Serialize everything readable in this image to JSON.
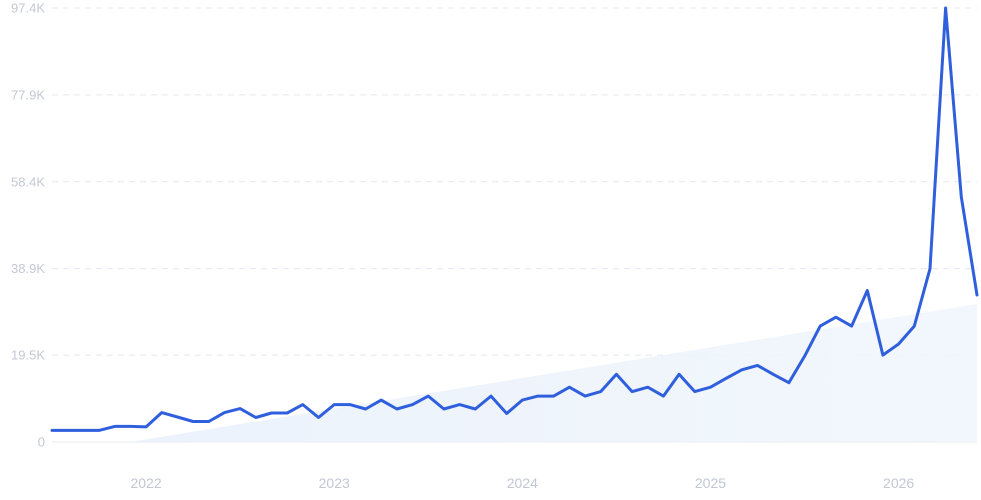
{
  "chart_data": {
    "type": "line",
    "title": "",
    "xlabel": "",
    "ylabel": "",
    "y_ticks": [
      "0",
      "19.5K",
      "38.9K",
      "58.4K",
      "77.9K",
      "97.4K"
    ],
    "y_tick_values": [
      0,
      19500,
      38900,
      58400,
      77900,
      97400
    ],
    "ylim": [
      0,
      97400
    ],
    "x_ticks": [
      "2022",
      "2023",
      "2024",
      "2025",
      "2026"
    ],
    "x_tick_values": [
      "2022-01",
      "2023-01",
      "2024-01",
      "2025-01",
      "2026-01"
    ],
    "xlim": [
      "2021-07",
      "2026-06"
    ],
    "grid": true,
    "legend": "none",
    "colors": {
      "line": "#2f5fdd",
      "trend_fill": "#dce8f9",
      "grid": "#e4e8f0",
      "tick_text": "#c2c8d2"
    },
    "trend": {
      "x": [
        "2021-12",
        "2026-06"
      ],
      "y": [
        0,
        31000
      ]
    },
    "series": [
      {
        "x": [
          "2021-07",
          "2021-08",
          "2021-09",
          "2021-10",
          "2021-11",
          "2021-12",
          "2022-01",
          "2022-02",
          "2022-03",
          "2022-04",
          "2022-05",
          "2022-06",
          "2022-07",
          "2022-08",
          "2022-09",
          "2022-10",
          "2022-11",
          "2022-12",
          "2023-01",
          "2023-02",
          "2023-03",
          "2023-04",
          "2023-05",
          "2023-06",
          "2023-07",
          "2023-08",
          "2023-09",
          "2023-10",
          "2023-11",
          "2023-12",
          "2024-01",
          "2024-02",
          "2024-03",
          "2024-04",
          "2024-05",
          "2024-06",
          "2024-07",
          "2024-08",
          "2024-09",
          "2024-10",
          "2024-11",
          "2024-12",
          "2025-01",
          "2025-02",
          "2025-03",
          "2025-04",
          "2025-05",
          "2025-06",
          "2025-07",
          "2025-08",
          "2025-09",
          "2025-10",
          "2025-11",
          "2025-12",
          "2026-01",
          "2026-02",
          "2026-03",
          "2026-04",
          "2026-05",
          "2026-06"
        ],
        "y": [
          2600,
          2600,
          2600,
          2600,
          3500,
          3500,
          3400,
          6600,
          5600,
          4600,
          4600,
          6600,
          7500,
          5500,
          6500,
          6500,
          8400,
          5500,
          8400,
          8400,
          7400,
          9400,
          7400,
          8400,
          10300,
          7400,
          8400,
          7400,
          10300,
          6400,
          9400,
          10300,
          10300,
          12300,
          10300,
          11300,
          15200,
          11300,
          12300,
          10300,
          15200,
          11300,
          12300,
          14300,
          16200,
          17200,
          15200,
          13300,
          19200,
          26000,
          28000,
          26000,
          34000,
          19500,
          22000,
          26000,
          38900,
          97400,
          55000,
          33000
        ]
      }
    ]
  }
}
